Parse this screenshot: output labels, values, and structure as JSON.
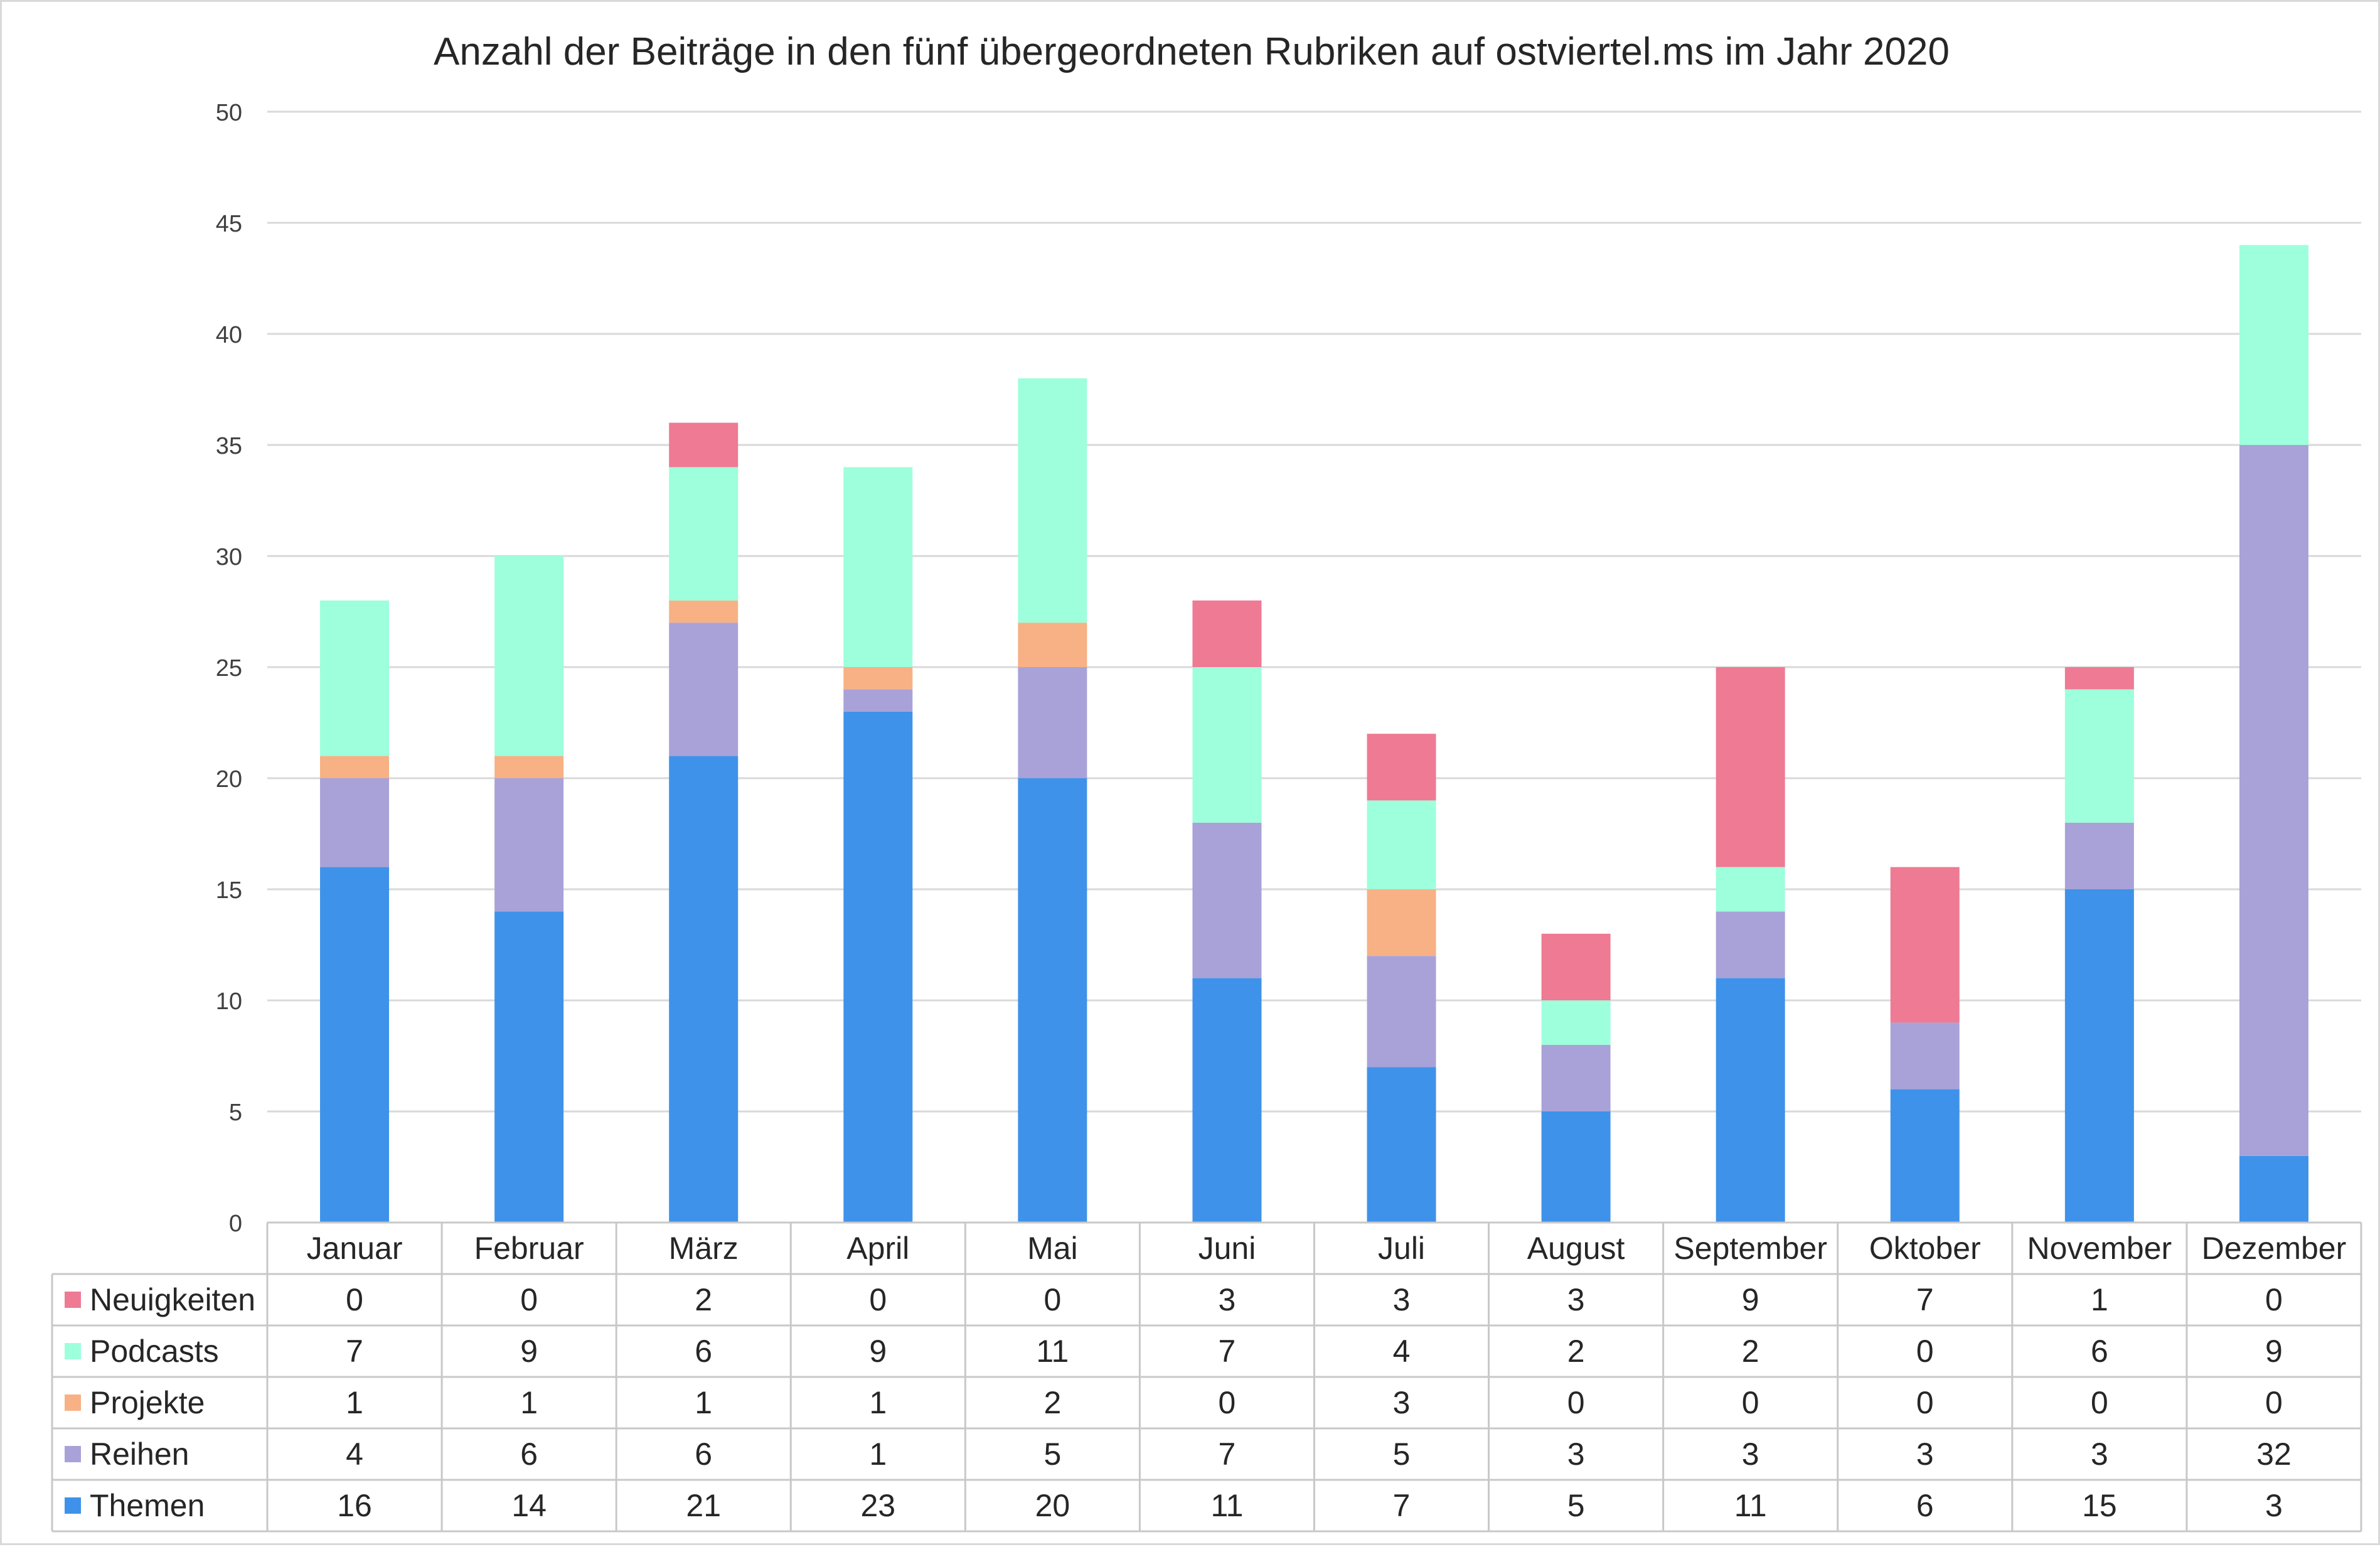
{
  "chart_data": {
    "type": "bar",
    "stacked": true,
    "title": "Anzahl der Beiträge in den fünf übergeordneten Rubriken auf ostviertel.ms im Jahr 2020",
    "xlabel": "",
    "ylabel": "",
    "ylim": [
      0,
      50
    ],
    "yticks": [
      0,
      5,
      10,
      15,
      20,
      25,
      30,
      35,
      40,
      45,
      50
    ],
    "grid": true,
    "legend": "data-table-left",
    "categories": [
      "Januar",
      "Februar",
      "März",
      "April",
      "Mai",
      "Juni",
      "Juli",
      "August",
      "September",
      "Oktober",
      "November",
      "Dezember"
    ],
    "series": [
      {
        "name": "Themen",
        "color": "#3f92e9",
        "values": [
          16,
          14,
          21,
          23,
          20,
          11,
          7,
          5,
          11,
          6,
          15,
          3
        ]
      },
      {
        "name": "Reihen",
        "color": "#a8a2d8",
        "values": [
          4,
          6,
          6,
          1,
          5,
          7,
          5,
          3,
          3,
          3,
          3,
          32
        ]
      },
      {
        "name": "Projekte",
        "color": "#f7b184",
        "values": [
          1,
          1,
          1,
          1,
          2,
          0,
          3,
          0,
          0,
          0,
          0,
          0
        ]
      },
      {
        "name": "Podcasts",
        "color": "#9dffdb",
        "values": [
          7,
          9,
          6,
          9,
          11,
          7,
          4,
          2,
          2,
          0,
          6,
          9
        ]
      },
      {
        "name": "Neuigkeiten",
        "color": "#ee7a93",
        "values": [
          0,
          0,
          2,
          0,
          0,
          3,
          3,
          3,
          9,
          7,
          1,
          0
        ]
      }
    ],
    "table_row_order": [
      "Neuigkeiten",
      "Podcasts",
      "Projekte",
      "Reihen",
      "Themen"
    ]
  }
}
